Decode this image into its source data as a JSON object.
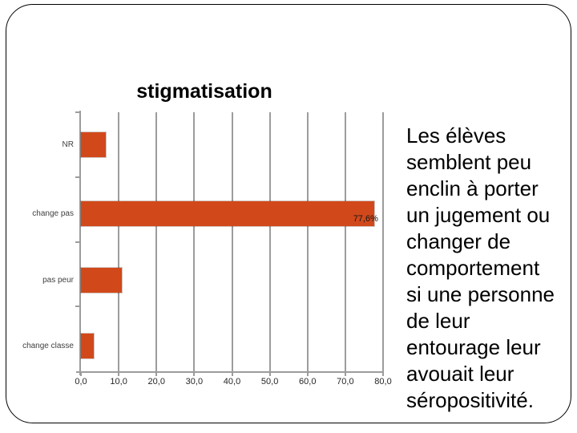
{
  "chart_data": {
    "type": "bar",
    "orientation": "horizontal",
    "title": "stigmatisation",
    "categories": [
      "NR",
      "change pas",
      "pas peur",
      "change classe"
    ],
    "values": [
      6.5,
      77.6,
      10.8,
      3.4
    ],
    "data_labels": [
      "",
      "77,6%",
      "",
      ""
    ],
    "x_ticks": [
      "0,0",
      "10,0",
      "20,0",
      "30,0",
      "40,0",
      "50,0",
      "60,0",
      "70,0",
      "80,0"
    ],
    "xlim": [
      0,
      80
    ],
    "grid": true,
    "legend": false,
    "bar_color": "#d1491b",
    "axis_color": "#9c9c9c"
  },
  "commentary": {
    "text": "Les élèves\nsemblent peu\nenclin à porter\nun jugement ou\nchanger de\ncomportement\nsi une personne\nde leur\nentourage leur\navouait leur\nséropositivité."
  }
}
